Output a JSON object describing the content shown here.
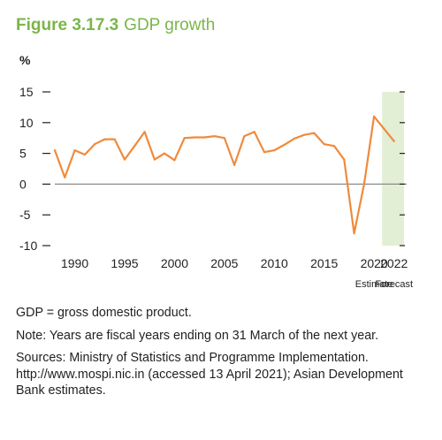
{
  "figure": {
    "number": "Figure 3.17.3",
    "title": "GDP growth"
  },
  "chart_data": {
    "type": "line",
    "unit_label": "%",
    "ylim": [
      -10,
      15
    ],
    "xlim": [
      1988,
      2023
    ],
    "yticks": [
      -10,
      -5,
      0,
      5,
      10,
      15
    ],
    "ytick_labels": [
      "-10",
      "-5",
      "0",
      "5",
      "10",
      "15"
    ],
    "xticks": [
      1990,
      1995,
      2000,
      2005,
      2010,
      2015,
      2020,
      2022
    ],
    "xtick_labels": [
      "1990",
      "1995",
      "2000",
      "2005",
      "2010",
      "2015",
      "2020",
      "2022"
    ],
    "shaded_region": {
      "from": 2020.8,
      "to": 2023,
      "color": "#e2efd4"
    },
    "period_labels": [
      {
        "text": "Estimate",
        "x": 2020
      },
      {
        "text": "Forecast",
        "x": 2022
      }
    ],
    "series": [
      {
        "color": "#f08a3b",
        "x": [
          1988,
          1989,
          1990,
          1991,
          1992,
          1993,
          1994,
          1995,
          1996,
          1997,
          1998,
          1999,
          2000,
          2001,
          2002,
          2003,
          2004,
          2005,
          2006,
          2007,
          2008,
          2009,
          2010,
          2011,
          2012,
          2013,
          2014,
          2015,
          2016,
          2017,
          2018,
          2019,
          2020,
          2021,
          2022
        ],
        "values": [
          5.5,
          1.1,
          5.5,
          4.8,
          6.5,
          7.3,
          7.3,
          4.0,
          6.2,
          8.5,
          4.0,
          5.0,
          3.9,
          7.5,
          7.6,
          7.6,
          7.8,
          7.5,
          3.1,
          7.8,
          8.5,
          5.2,
          5.5,
          6.4,
          7.4,
          8.0,
          8.3,
          6.5,
          6.2,
          4.0,
          -8.0,
          0.0,
          11.0,
          9.0,
          7.0
        ]
      }
    ],
    "zero_line_color": "#8a8a8a"
  },
  "notes": [
    "GDP = gross domestic product.",
    "Note: Years are fiscal years ending on 31 March of the next year.",
    "Sources: Ministry of Statistics and Programme Implementation. http://www.mospi.nic.in (accessed 13 April 2021); Asian Development Bank estimates."
  ]
}
